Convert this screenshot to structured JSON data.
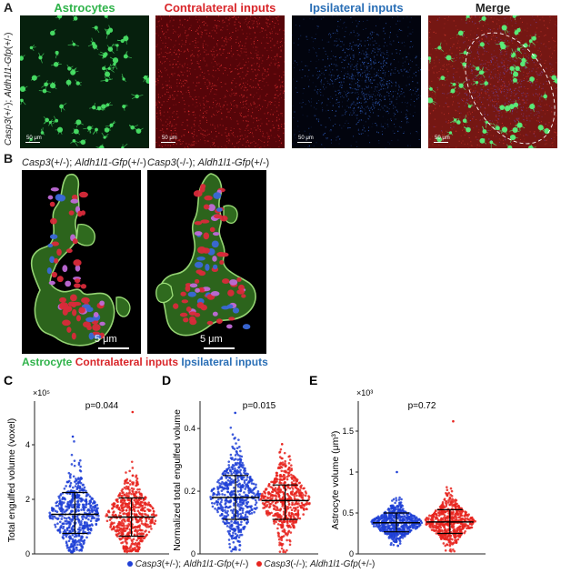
{
  "panel_a": {
    "letter": "A",
    "row_label_parts": [
      "Casp3",
      "(+/-); ",
      "Aldh1l1-Gfp",
      "(+/-)"
    ],
    "titles": [
      {
        "text": "Astrocytes",
        "color": "#2fb34a"
      },
      {
        "text": "Contralateral inputs",
        "color": "#d9262a"
      },
      {
        "text": "Ipsilateral inputs",
        "color": "#2a6fb6"
      },
      {
        "text": "Merge",
        "color": "#222222"
      }
    ],
    "scale_bar": "50 μm"
  },
  "panel_b": {
    "letter": "B",
    "left_title_parts": [
      "Casp3",
      "(+/-); ",
      "Aldh1l1-Gfp",
      "(+/-)"
    ],
    "right_title_parts": [
      "Casp3",
      "(-/-); ",
      "Aldh1l1-Gfp",
      "(+/-)"
    ],
    "scale_bar": "5 μm",
    "caption": [
      {
        "text": "Astrocyte",
        "color": "#2fb34a"
      },
      {
        "text": "Contralateral inputs",
        "color": "#d9262a"
      },
      {
        "text": "Ipsilateral inputs",
        "color": "#2a6fb6"
      }
    ]
  },
  "colors": {
    "het": "#1f3fd6",
    "ko": "#e8251f"
  },
  "legend": {
    "het_parts": [
      "Casp3",
      "(+/-); ",
      "Aldh1l1-Gfp",
      "(+/-)"
    ],
    "ko_parts": [
      "Casp3",
      "(-/-); ",
      "Aldh1l1-Gfp",
      "(+/-)"
    ]
  },
  "chart_data": [
    {
      "letter": "C",
      "type": "scatter",
      "ylabel": "Total engulfed volume (voxel)",
      "multiplier": "×10⁵",
      "pvalue": "p=0.044",
      "ylim": [
        0,
        5.4
      ],
      "yticks": [
        0,
        2,
        4
      ],
      "series": [
        {
          "name": "Casp3(+/-); Aldh1l1-Gfp(+/-)",
          "mean": 1.45,
          "sd_low": 0.75,
          "sd_high": 2.25,
          "spread": 0.75,
          "max": 4.3
        },
        {
          "name": "Casp3(-/-); Aldh1l1-Gfp(+/-)",
          "mean": 1.35,
          "sd_low": 0.65,
          "sd_high": 2.05,
          "spread": 0.72,
          "max": 5.2
        }
      ]
    },
    {
      "letter": "D",
      "type": "scatter",
      "ylabel": "Normalized total engulfed volume",
      "multiplier": "",
      "pvalue": "p=0.015",
      "ylim": [
        0,
        0.47
      ],
      "yticks": [
        0,
        0.2,
        0.4
      ],
      "series": [
        {
          "name": "Casp3(+/-); Aldh1l1-Gfp(+/-)",
          "mean": 0.18,
          "sd_low": 0.11,
          "sd_high": 0.25,
          "spread": 0.07,
          "max": 0.45
        },
        {
          "name": "Casp3(-/-); Aldh1l1-Gfp(+/-)",
          "mean": 0.17,
          "sd_low": 0.11,
          "sd_high": 0.22,
          "spread": 0.06,
          "max": 0.35
        }
      ]
    },
    {
      "letter": "E",
      "type": "scatter",
      "ylabel": "Astrocyte volume (μm³)",
      "multiplier": "×10³",
      "pvalue": "p=0.72",
      "ylim": [
        0,
        1.8
      ],
      "yticks": [
        0,
        0.5,
        1.0,
        1.5
      ],
      "series": [
        {
          "name": "Casp3(+/-); Aldh1l1-Gfp(+/-)",
          "mean": 0.38,
          "sd_low": 0.27,
          "sd_high": 0.5,
          "spread": 0.11,
          "max": 1.0
        },
        {
          "name": "Casp3(-/-); Aldh1l1-Gfp(+/-)",
          "mean": 0.39,
          "sd_low": 0.25,
          "sd_high": 0.54,
          "spread": 0.14,
          "max": 1.62
        }
      ]
    }
  ]
}
